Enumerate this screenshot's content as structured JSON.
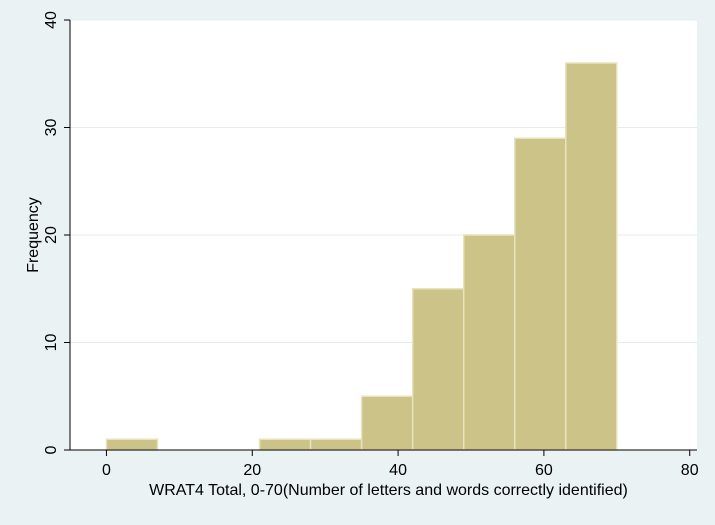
{
  "chart_data": {
    "type": "bar",
    "subtype": "histogram",
    "title": "",
    "xlabel": "WRAT4 Total, 0-70(Number of letters and words correctly identified)",
    "ylabel": "Frequency",
    "xlim": [
      -5,
      81
    ],
    "ylim": [
      0,
      40
    ],
    "xticks": [
      0,
      20,
      40,
      60,
      80
    ],
    "yticks": [
      0,
      10,
      20,
      30,
      40
    ],
    "grid": "horizontal",
    "legend": "none",
    "bins": [
      {
        "start": 0,
        "end": 7,
        "count": 1
      },
      {
        "start": 7,
        "end": 14,
        "count": 0
      },
      {
        "start": 14,
        "end": 21,
        "count": 0
      },
      {
        "start": 21,
        "end": 28,
        "count": 1
      },
      {
        "start": 28,
        "end": 35,
        "count": 1
      },
      {
        "start": 35,
        "end": 42,
        "count": 5
      },
      {
        "start": 42,
        "end": 49,
        "count": 15
      },
      {
        "start": 49,
        "end": 56,
        "count": 20
      },
      {
        "start": 56,
        "end": 63,
        "count": 29
      },
      {
        "start": 63,
        "end": 70,
        "count": 36
      }
    ],
    "colors": {
      "background": "#eaf2f3",
      "plot_area": "#ffffff",
      "bar_fill": "#cbc387",
      "bar_stroke": "#e8e3bf",
      "grid": "#e4ecec",
      "axis": "#000000"
    }
  }
}
